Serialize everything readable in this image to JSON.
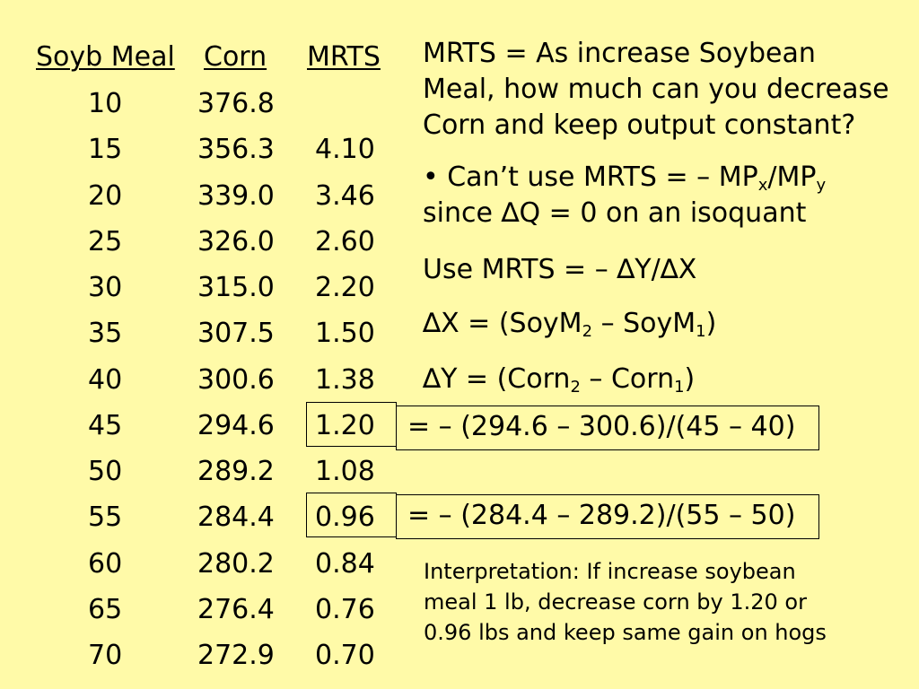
{
  "table": {
    "headers": {
      "soy": "Soyb Meal",
      "corn": "Corn",
      "mrts": "MRTS"
    },
    "rows": [
      {
        "soy": "10",
        "corn": "376.8",
        "mrts": ""
      },
      {
        "soy": "15",
        "corn": "356.3",
        "mrts": "4.10"
      },
      {
        "soy": "20",
        "corn": "339.0",
        "mrts": "3.46"
      },
      {
        "soy": "25",
        "corn": "326.0",
        "mrts": "2.60"
      },
      {
        "soy": "30",
        "corn": "315.0",
        "mrts": "2.20"
      },
      {
        "soy": "35",
        "corn": "307.5",
        "mrts": "1.50"
      },
      {
        "soy": "40",
        "corn": "300.6",
        "mrts": "1.38"
      },
      {
        "soy": "45",
        "corn": "294.6",
        "mrts": "1.20"
      },
      {
        "soy": "50",
        "corn": "289.2",
        "mrts": "1.08"
      },
      {
        "soy": "55",
        "corn": "284.4",
        "mrts": "0.96"
      },
      {
        "soy": "60",
        "corn": "280.2",
        "mrts": "0.84"
      },
      {
        "soy": "65",
        "corn": "276.4",
        "mrts": "0.76"
      },
      {
        "soy": "70",
        "corn": "272.9",
        "mrts": "0.70"
      }
    ]
  },
  "definition": {
    "line1": "MRTS = As increase Soybean",
    "line2": "Meal, how much can you decrease",
    "line3": "Corn and keep output constant?"
  },
  "bullet": {
    "part1": "• Can’t use MRTS = – MP",
    "sub_x": "x",
    "part2": "/MP",
    "sub_y": "y",
    "line2": "since ∆Q = 0 on an isoquant"
  },
  "use_formula": "Use MRTS = – ∆Y/∆X",
  "delta_x": {
    "part1": "∆X = (SoyM",
    "sub1": "2",
    "part2": " – SoyM",
    "sub2": "1",
    "part3": ")"
  },
  "delta_y": {
    "part1": "∆Y = (Corn",
    "sub1": "2",
    "part2": " – Corn",
    "sub2": "1",
    "part3": ")"
  },
  "calc1": "= – (294.6 – 300.6)/(45 – 40)",
  "calc2": "= – (284.4 – 289.2)/(55 – 50)",
  "interpretation": {
    "line1": "Interpretation: If increase soybean",
    "line2": "meal 1 lb, decrease corn by 1.20 or",
    "line3": "0.96 lbs and keep same gain on hogs"
  },
  "colors": {
    "background": "#FFFAA8",
    "text": "#000000"
  }
}
